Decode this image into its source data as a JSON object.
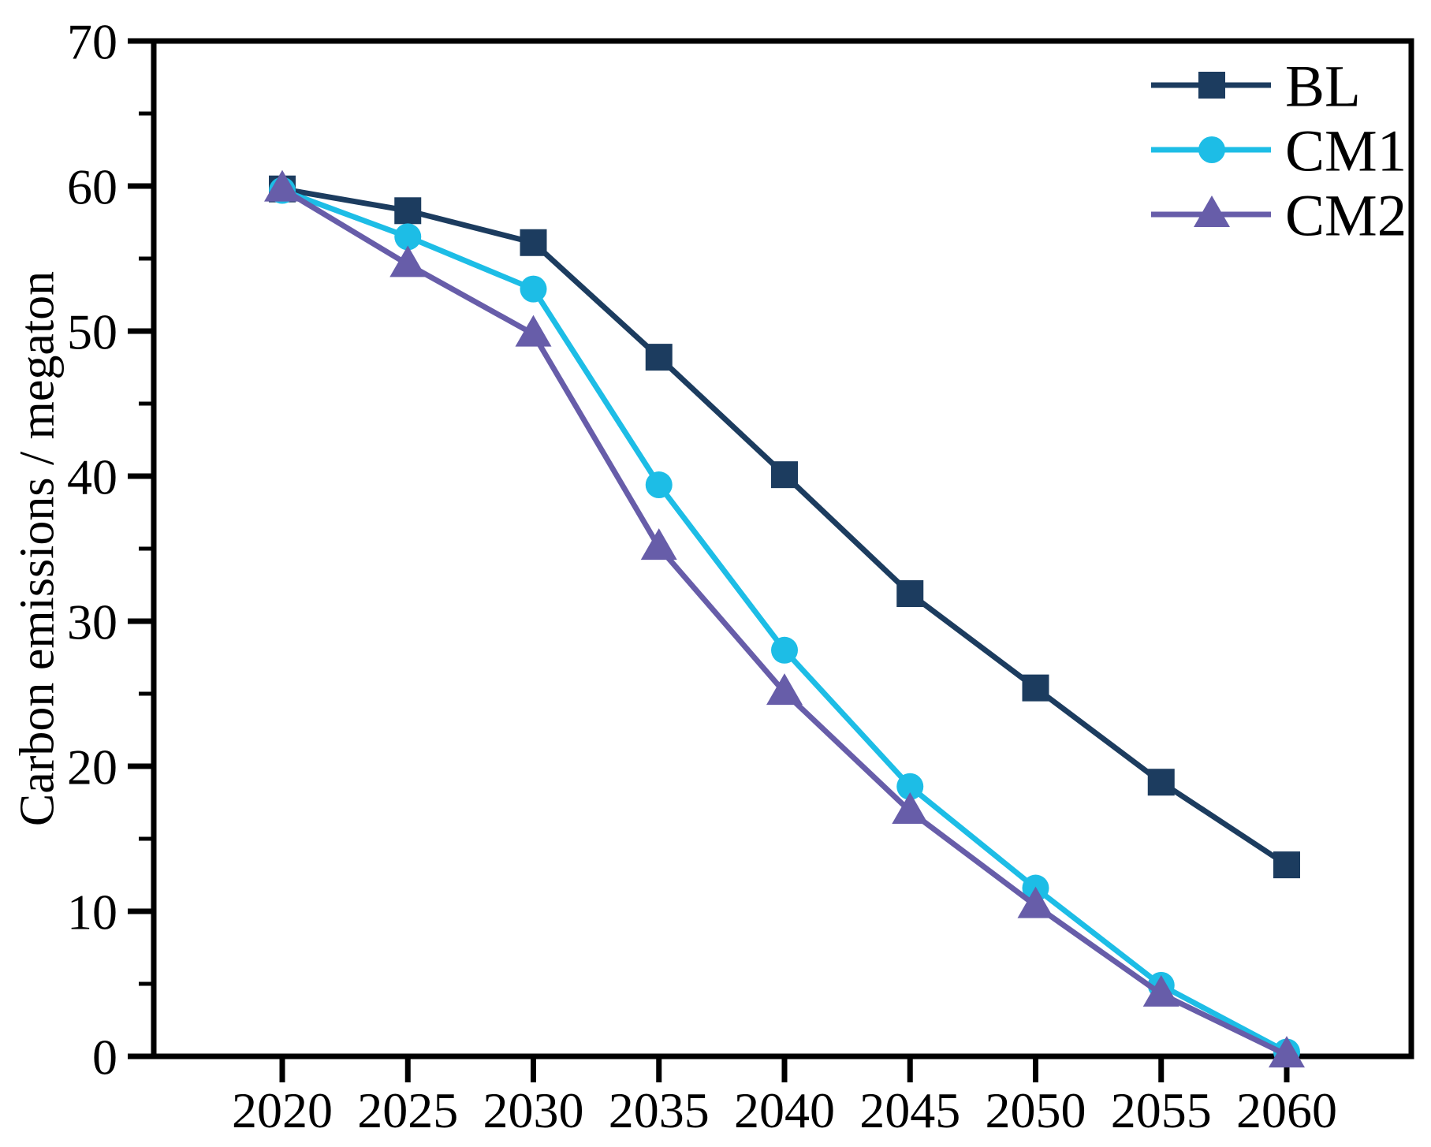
{
  "chart_data": {
    "type": "line",
    "title": "",
    "xlabel": "",
    "ylabel": "Carbon emissions / megaton",
    "x_categories": [
      "2020",
      "2025",
      "2030",
      "2035",
      "2040",
      "2045",
      "2050",
      "2055",
      "2060"
    ],
    "ylim": [
      0,
      70
    ],
    "yticks_major": [
      0,
      10,
      20,
      30,
      40,
      50,
      60,
      70
    ],
    "yticks_minor": [
      5,
      15,
      25,
      35,
      45,
      55,
      65
    ],
    "grid": false,
    "legend_position": "top-right-inside",
    "axis_color": "#000000",
    "background_color": "#ffffff",
    "series": [
      {
        "name": "BL",
        "color": "#1c3c5f",
        "marker": "square",
        "values": [
          59.8,
          58.3,
          56.1,
          48.2,
          40.1,
          31.9,
          25.4,
          18.9,
          13.2
        ]
      },
      {
        "name": "CM1",
        "color": "#1dbde6",
        "marker": "circle",
        "values": [
          59.7,
          56.5,
          52.9,
          39.4,
          28.0,
          18.6,
          11.6,
          4.9,
          0.3
        ]
      },
      {
        "name": "CM2",
        "color": "#675da9",
        "marker": "triangle",
        "values": [
          59.8,
          54.6,
          49.8,
          35.1,
          25.1,
          16.9,
          10.4,
          4.3,
          0.1
        ]
      }
    ]
  }
}
